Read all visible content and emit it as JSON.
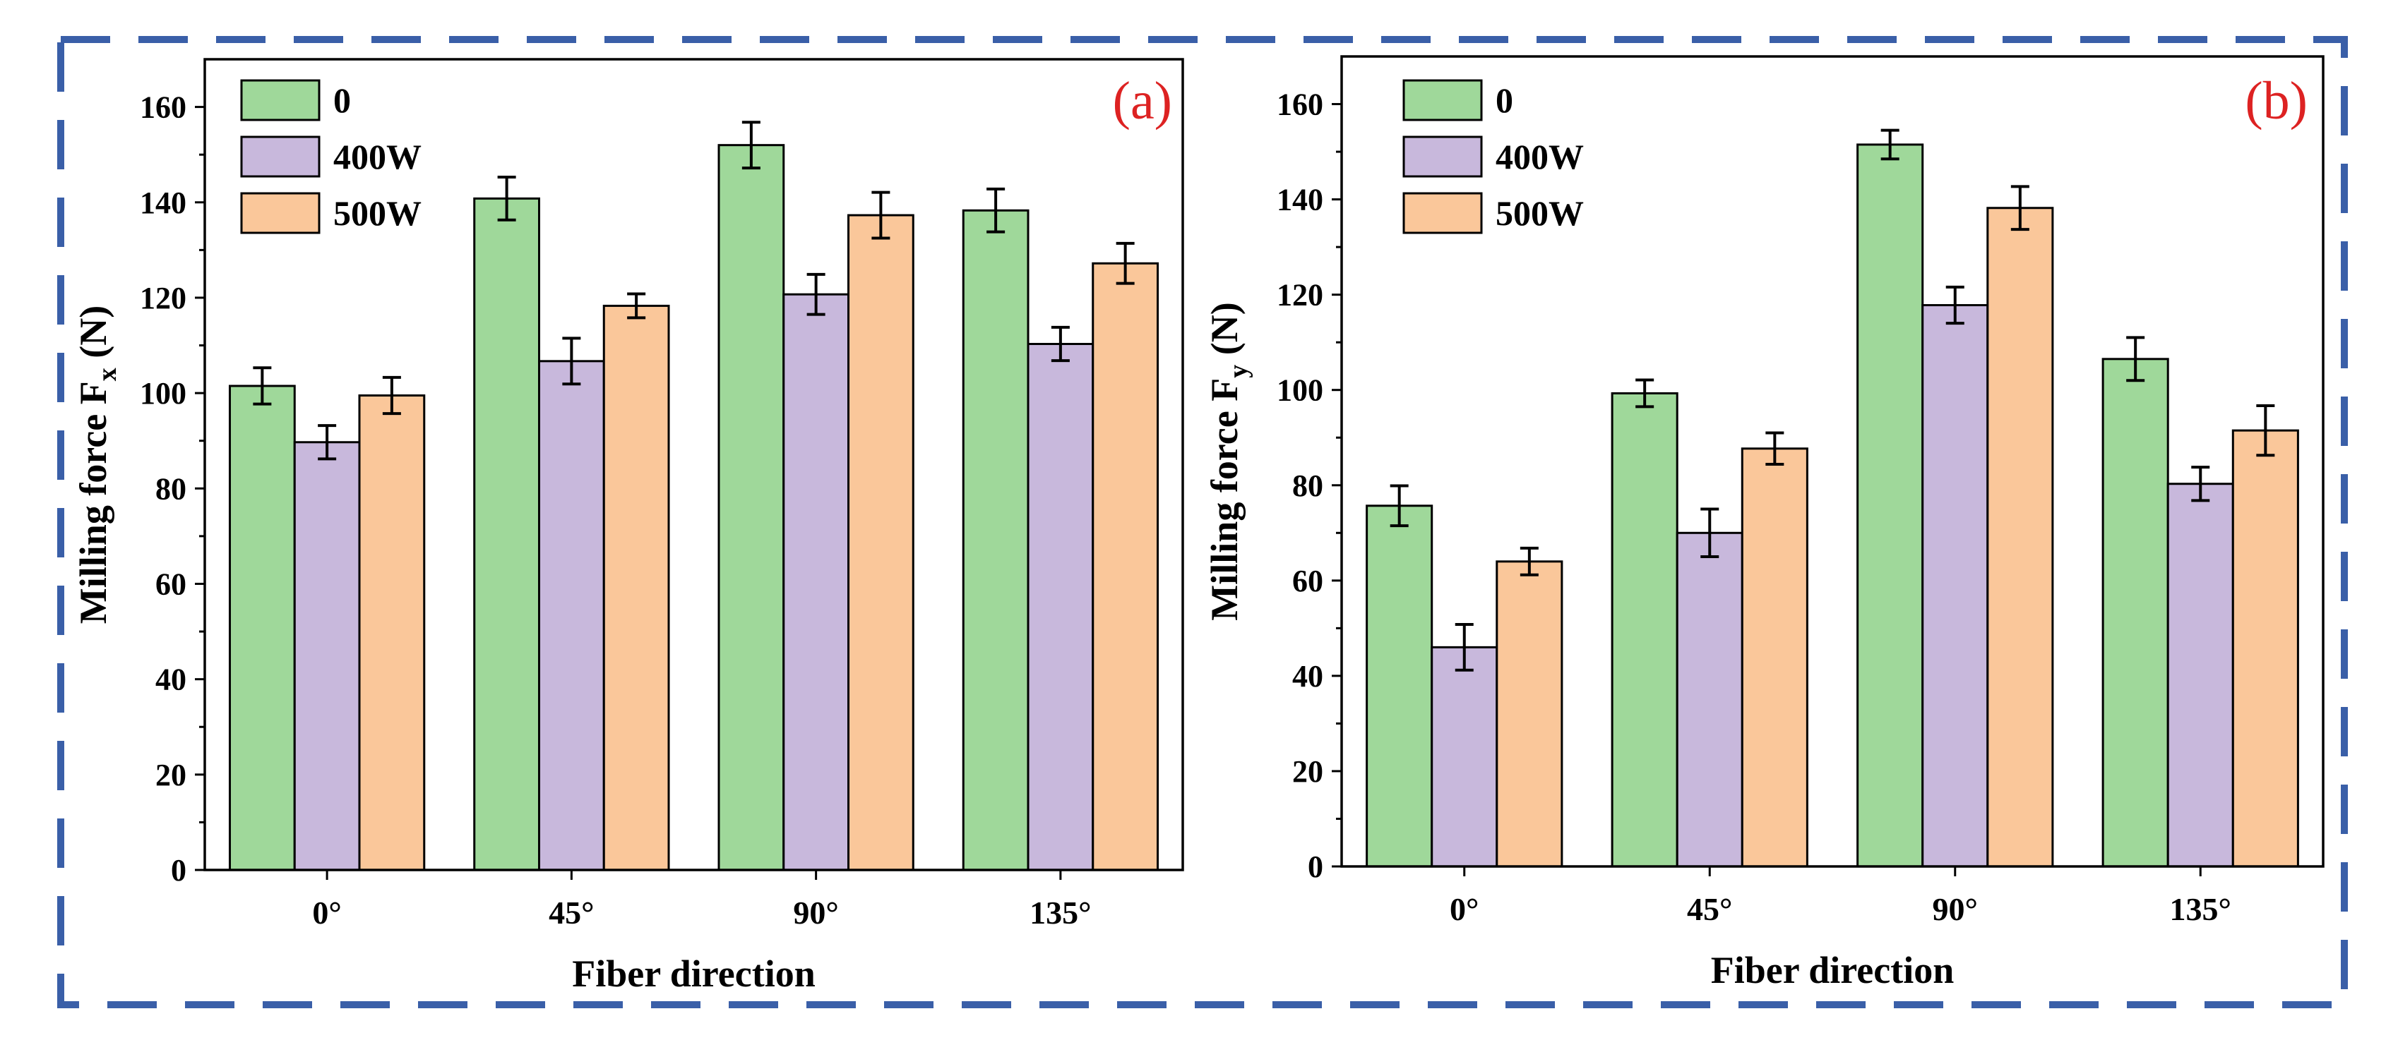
{
  "colors": {
    "border": "#3a5fa8",
    "series": [
      "#9fd89a",
      "#c8b8dc",
      "#fac79a"
    ],
    "panel_label": "#dd2222"
  },
  "chart_data": [
    {
      "type": "bar",
      "panel_label": "(a)",
      "categories": [
        "0°",
        "45°",
        "90°",
        "135°"
      ],
      "xlabel": "Fiber direction",
      "ylabel_main": "Milling force F",
      "ylabel_sub": "x",
      "ylabel_unit": " (N)",
      "ylim": [
        0,
        170
      ],
      "yticks": [
        0,
        20,
        40,
        60,
        80,
        100,
        120,
        140,
        160
      ],
      "legend_position": "top-left",
      "series": [
        {
          "name": "0",
          "values": [
            101.5,
            140.8,
            152,
            138.3
          ],
          "errors": [
            3.8,
            4.5,
            4.8,
            4.5
          ]
        },
        {
          "name": "400W",
          "values": [
            89.7,
            106.7,
            120.7,
            110.3
          ],
          "errors": [
            3.5,
            4.8,
            4.2,
            3.5
          ]
        },
        {
          "name": "500W",
          "values": [
            99.5,
            118.3,
            137.3,
            127.2
          ],
          "errors": [
            3.8,
            2.5,
            4.8,
            4.2
          ]
        }
      ]
    },
    {
      "type": "bar",
      "panel_label": "(b)",
      "categories": [
        "0°",
        "45°",
        "90°",
        "135°"
      ],
      "xlabel": "Fiber direction",
      "ylabel_main": "Milling force F",
      "ylabel_sub": "y",
      "ylabel_unit": " (N)",
      "ylim": [
        0,
        170
      ],
      "yticks": [
        0,
        20,
        40,
        60,
        80,
        100,
        120,
        140,
        160
      ],
      "legend_position": "top-left",
      "series": [
        {
          "name": "0",
          "values": [
            75.7,
            99.3,
            151.5,
            106.5
          ],
          "errors": [
            4.2,
            2.8,
            3.0,
            4.5
          ]
        },
        {
          "name": "400W",
          "values": [
            46,
            70,
            117.8,
            80.3
          ],
          "errors": [
            4.8,
            5.0,
            3.8,
            3.5
          ]
        },
        {
          "name": "500W",
          "values": [
            64,
            87.7,
            138.2,
            91.5
          ],
          "errors": [
            2.8,
            3.3,
            4.5,
            5.2
          ]
        }
      ]
    }
  ]
}
